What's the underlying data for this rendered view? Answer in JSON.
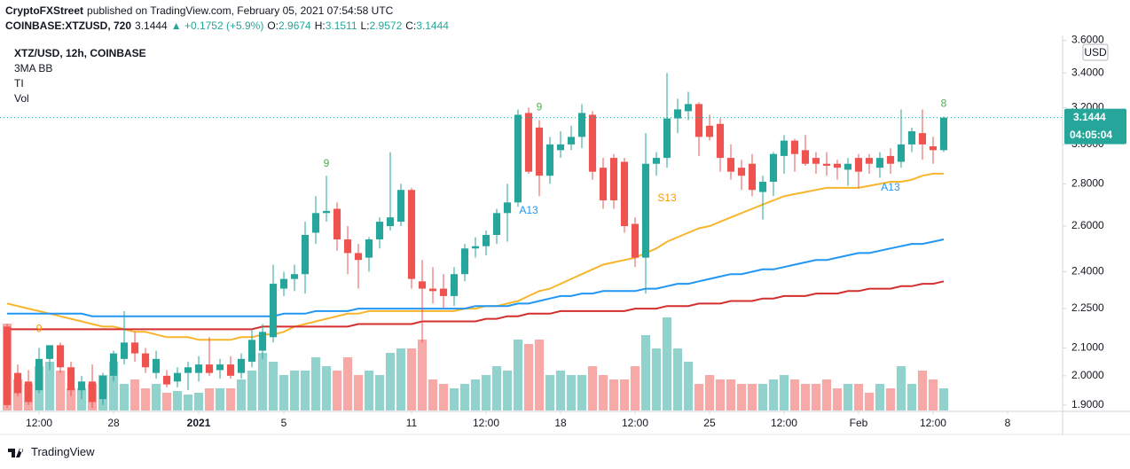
{
  "header": {
    "author": "CryptoFXStreet",
    "published": "published on TradingView.com, February 05, 2021 07:54:58 UTC",
    "symbol": "COINBASE:XTZUSD, 720",
    "last": 3.1444,
    "change": "▲ +0.1752 (+5.9%)",
    "ohlc": [
      {
        "label": "O:",
        "value": 2.9674
      },
      {
        "label": "H:",
        "value": 3.1511
      },
      {
        "label": "L:",
        "value": 2.9572
      },
      {
        "label": "C:",
        "value": 3.1444
      }
    ]
  },
  "footer": {
    "brand": "TradingView"
  },
  "chart_data": {
    "type": "candlestick",
    "title": "XTZ/USD, 12h, COINBASE",
    "indicators": [
      "3MA BB",
      "TI",
      "Vol"
    ],
    "currency": "USD",
    "log_scale": true,
    "grid": false,
    "up_color": "#26a69a",
    "down_color": "#ef5350",
    "xlim": [
      -0.67,
      99.17
    ],
    "ylim": [
      1.882,
      3.62
    ],
    "yticks": [
      {
        "value": 3.6,
        "label": "3.6000"
      },
      {
        "value": 3.4,
        "label": "3.4000"
      },
      {
        "value": 3.2,
        "label": "3.2000"
      },
      {
        "value": 3.0,
        "label": "3.0000"
      },
      {
        "value": 2.8,
        "label": "2.8000"
      },
      {
        "value": 2.6,
        "label": "2.6000"
      },
      {
        "value": 2.4,
        "label": "2.4000"
      },
      {
        "value": 2.25,
        "label": "2.2500"
      },
      {
        "value": 2.1,
        "label": "2.1000"
      },
      {
        "value": 2.0,
        "label": "2.0000"
      },
      {
        "value": 1.9,
        "label": "1.9000"
      }
    ],
    "xticks": [
      {
        "value": 3,
        "label": "12:00"
      },
      {
        "value": 10,
        "label": "28"
      },
      {
        "value": 18,
        "label": "2021"
      },
      {
        "value": 26,
        "label": "5"
      },
      {
        "value": 38,
        "label": "11"
      },
      {
        "value": 45,
        "label": "12:00"
      },
      {
        "value": 52,
        "label": "18"
      },
      {
        "value": 59,
        "label": "12:00"
      },
      {
        "value": 66,
        "label": "25"
      },
      {
        "value": 73,
        "label": "12:00"
      },
      {
        "value": 80,
        "label": "Feb"
      },
      {
        "value": 87,
        "label": "12:00"
      },
      {
        "value": 94,
        "label": "8"
      }
    ],
    "open": [
      2.18,
      2.01,
      1.98,
      1.95,
      2.06,
      2.11,
      2.03,
      1.95,
      1.98,
      1.92,
      2.0,
      2.06,
      2.12,
      2.08,
      2.01,
      2.0,
      1.98,
      2.01,
      2.01,
      2.04,
      2.02,
      2.04,
      2.01,
      2.05,
      2.09,
      2.14,
      2.33,
      2.37,
      2.39,
      2.57,
      2.66,
      2.68,
      2.54,
      2.48,
      2.46,
      2.54,
      2.6,
      2.62,
      2.77,
      2.36,
      2.33,
      2.33,
      2.3,
      2.39,
      2.5,
      2.51,
      2.56,
      2.66,
      2.71,
      3.17,
      3.09,
      2.84,
      2.97,
      3.0,
      3.04,
      3.16,
      2.88,
      2.93,
      2.91,
      2.61,
      2.46,
      2.9,
      2.93,
      3.14,
      3.18,
      3.22,
      3.1,
      3.11,
      2.93,
      2.88,
      2.9,
      2.76,
      2.81,
      2.94,
      3.02,
      2.97,
      2.93,
      2.9,
      2.9,
      2.87,
      2.93,
      2.93,
      2.88,
      2.94,
      2.91,
      3.0,
      3.06,
      2.99,
      2.97
    ],
    "high": [
      2.19,
      2.04,
      2.02,
      2.1,
      2.11,
      2.12,
      2.05,
      2.0,
      2.04,
      2.01,
      2.09,
      2.24,
      2.16,
      2.1,
      2.09,
      2.02,
      2.03,
      2.05,
      2.07,
      2.14,
      2.06,
      2.07,
      2.08,
      2.17,
      2.19,
      2.43,
      2.4,
      2.43,
      2.62,
      2.74,
      2.84,
      2.71,
      2.6,
      2.52,
      2.55,
      2.64,
      2.96,
      2.8,
      2.78,
      2.45,
      2.42,
      2.39,
      2.42,
      2.52,
      2.55,
      2.58,
      2.68,
      2.8,
      3.19,
      3.2,
      3.13,
      3.04,
      3.07,
      3.1,
      3.22,
      3.18,
      2.93,
      2.95,
      2.93,
      2.64,
      3.06,
      2.96,
      3.4,
      3.25,
      3.29,
      3.23,
      3.16,
      3.14,
      3.0,
      2.92,
      2.95,
      2.84,
      2.96,
      3.05,
      3.03,
      3.05,
      2.96,
      2.96,
      2.92,
      2.93,
      2.95,
      2.95,
      2.96,
      2.98,
      3.19,
      3.09,
      3.19,
      3.04,
      3.15
    ],
    "low": [
      1.89,
      1.93,
      1.9,
      1.94,
      2.02,
      2.01,
      1.93,
      1.92,
      1.89,
      1.9,
      1.98,
      2.04,
      2.05,
      2.01,
      1.99,
      1.96,
      1.96,
      1.95,
      1.98,
      2.0,
      1.99,
      1.99,
      1.99,
      2.03,
      2.06,
      2.12,
      2.3,
      2.32,
      2.31,
      2.52,
      2.62,
      2.49,
      2.39,
      2.33,
      2.4,
      2.5,
      2.58,
      2.6,
      2.33,
      2.12,
      2.27,
      2.25,
      2.26,
      2.36,
      2.46,
      2.47,
      2.52,
      2.53,
      2.69,
      2.85,
      2.74,
      2.8,
      2.93,
      2.97,
      2.98,
      2.82,
      2.68,
      2.68,
      2.57,
      2.42,
      2.31,
      2.84,
      2.88,
      3.06,
      3.13,
      2.94,
      3.02,
      2.86,
      2.82,
      2.77,
      2.74,
      2.63,
      2.74,
      2.85,
      2.86,
      2.89,
      2.85,
      2.84,
      2.82,
      2.79,
      2.78,
      2.85,
      2.83,
      2.85,
      2.88,
      2.96,
      2.92,
      2.9,
      2.96
    ],
    "close": [
      1.9,
      1.94,
      1.91,
      2.06,
      2.11,
      2.03,
      1.95,
      1.98,
      1.91,
      2.0,
      2.08,
      2.12,
      2.08,
      2.03,
      2.06,
      1.97,
      2.01,
      2.03,
      2.04,
      2.01,
      2.04,
      2.0,
      2.06,
      2.13,
      2.16,
      2.35,
      2.37,
      2.39,
      2.56,
      2.66,
      2.67,
      2.54,
      2.48,
      2.45,
      2.54,
      2.62,
      2.64,
      2.77,
      2.37,
      2.33,
      2.32,
      2.3,
      2.39,
      2.5,
      2.51,
      2.56,
      2.66,
      2.71,
      3.16,
      2.86,
      2.84,
      3.0,
      3.0,
      3.04,
      3.17,
      2.86,
      2.72,
      2.72,
      2.6,
      2.46,
      2.9,
      2.93,
      3.14,
      3.19,
      3.22,
      3.04,
      3.04,
      2.93,
      2.86,
      2.84,
      2.77,
      2.81,
      2.95,
      3.02,
      2.95,
      2.9,
      2.9,
      2.89,
      2.88,
      2.9,
      2.86,
      2.9,
      2.93,
      2.9,
      3.0,
      3.07,
      3.0,
      2.97,
      3.1444
    ],
    "volume": [
      98,
      35,
      30,
      50,
      55,
      45,
      25,
      25,
      30,
      40,
      55,
      30,
      35,
      25,
      30,
      20,
      22,
      18,
      20,
      25,
      25,
      25,
      35,
      45,
      65,
      55,
      40,
      45,
      45,
      60,
      50,
      45,
      60,
      40,
      45,
      40,
      65,
      70,
      70,
      80,
      35,
      30,
      25,
      30,
      35,
      40,
      50,
      45,
      80,
      75,
      80,
      40,
      45,
      40,
      40,
      50,
      40,
      35,
      35,
      50,
      85,
      70,
      105,
      70,
      55,
      30,
      40,
      35,
      35,
      30,
      30,
      30,
      35,
      40,
      35,
      30,
      30,
      35,
      25,
      30,
      30,
      20,
      30,
      25,
      50,
      30,
      45,
      35,
      25
    ],
    "series": [
      {
        "color": "#f7b52c",
        "values": [
          2.27,
          2.26,
          2.25,
          2.24,
          2.23,
          2.22,
          2.21,
          2.2,
          2.19,
          2.18,
          2.18,
          2.17,
          2.16,
          2.16,
          2.15,
          2.14,
          2.14,
          2.14,
          2.13,
          2.13,
          2.13,
          2.13,
          2.14,
          2.14,
          2.15,
          2.15,
          2.16,
          2.18,
          2.19,
          2.2,
          2.21,
          2.22,
          2.23,
          2.23,
          2.24,
          2.24,
          2.24,
          2.24,
          2.24,
          2.24,
          2.24,
          2.24,
          2.24,
          2.25,
          2.25,
          2.26,
          2.26,
          2.27,
          2.28,
          2.3,
          2.32,
          2.33,
          2.35,
          2.37,
          2.39,
          2.41,
          2.43,
          2.44,
          2.45,
          2.46,
          2.48,
          2.5,
          2.53,
          2.55,
          2.57,
          2.59,
          2.6,
          2.62,
          2.64,
          2.66,
          2.68,
          2.7,
          2.72,
          2.74,
          2.75,
          2.76,
          2.77,
          2.78,
          2.78,
          2.78,
          2.78,
          2.79,
          2.8,
          2.81,
          2.81,
          2.82,
          2.84,
          2.85,
          2.85
        ]
      },
      {
        "color": "#2196f3",
        "values": [
          2.23,
          2.23,
          2.23,
          2.23,
          2.23,
          2.23,
          2.23,
          2.23,
          2.22,
          2.22,
          2.22,
          2.22,
          2.22,
          2.22,
          2.22,
          2.22,
          2.22,
          2.22,
          2.22,
          2.22,
          2.22,
          2.22,
          2.22,
          2.22,
          2.22,
          2.22,
          2.23,
          2.23,
          2.23,
          2.24,
          2.24,
          2.24,
          2.24,
          2.25,
          2.25,
          2.25,
          2.25,
          2.25,
          2.25,
          2.25,
          2.25,
          2.25,
          2.25,
          2.25,
          2.26,
          2.26,
          2.26,
          2.26,
          2.27,
          2.27,
          2.28,
          2.29,
          2.3,
          2.3,
          2.31,
          2.31,
          2.32,
          2.32,
          2.32,
          2.32,
          2.33,
          2.33,
          2.34,
          2.35,
          2.35,
          2.36,
          2.37,
          2.38,
          2.39,
          2.39,
          2.4,
          2.41,
          2.41,
          2.42,
          2.43,
          2.44,
          2.45,
          2.45,
          2.46,
          2.47,
          2.48,
          2.48,
          2.49,
          2.5,
          2.51,
          2.52,
          2.52,
          2.53,
          2.54
        ]
      },
      {
        "color": "#d32f2f",
        "values": [
          2.17,
          2.17,
          2.17,
          2.17,
          2.17,
          2.17,
          2.17,
          2.17,
          2.17,
          2.17,
          2.17,
          2.17,
          2.17,
          2.17,
          2.17,
          2.17,
          2.17,
          2.17,
          2.17,
          2.17,
          2.17,
          2.17,
          2.17,
          2.17,
          2.18,
          2.18,
          2.18,
          2.18,
          2.18,
          2.18,
          2.18,
          2.18,
          2.18,
          2.19,
          2.19,
          2.19,
          2.19,
          2.19,
          2.19,
          2.2,
          2.2,
          2.2,
          2.2,
          2.2,
          2.2,
          2.21,
          2.21,
          2.22,
          2.22,
          2.23,
          2.23,
          2.23,
          2.24,
          2.24,
          2.24,
          2.24,
          2.24,
          2.24,
          2.24,
          2.25,
          2.25,
          2.25,
          2.26,
          2.26,
          2.26,
          2.27,
          2.27,
          2.27,
          2.28,
          2.28,
          2.28,
          2.29,
          2.29,
          2.3,
          2.3,
          2.3,
          2.31,
          2.31,
          2.31,
          2.32,
          2.32,
          2.33,
          2.33,
          2.33,
          2.34,
          2.34,
          2.35,
          2.35,
          2.36
        ]
      }
    ],
    "last_price": 3.1444,
    "countdown": "04:05:04",
    "annotations": [
      {
        "text": "9",
        "x": 3,
        "y": 2.17,
        "color": "#ff9800"
      },
      {
        "text": "9",
        "x": 30,
        "y": 2.9,
        "color": "#4caf50"
      },
      {
        "text": "A13",
        "x": 49,
        "y": 2.67,
        "color": "#2196f3"
      },
      {
        "text": "9",
        "x": 50,
        "y": 3.2,
        "color": "#4caf50"
      },
      {
        "text": "S13",
        "x": 62,
        "y": 2.73,
        "color": "#ff9800"
      },
      {
        "text": "A13",
        "x": 83,
        "y": 2.78,
        "color": "#2196f3"
      },
      {
        "text": "8",
        "x": 88,
        "y": 3.22,
        "color": "#4caf50"
      }
    ]
  }
}
